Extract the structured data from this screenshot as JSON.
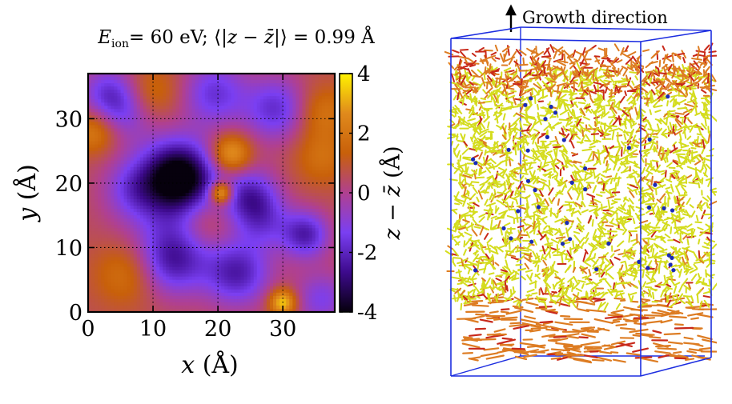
{
  "chart_data": [
    {
      "type": "heatmap",
      "title": "E_ion = 60 eV; ⟨|z − z̄|⟩ = 0.99 Å",
      "title_parts": {
        "var": "E",
        "sub": "ion",
        "eq_value": "= 60 eV; ⟨|",
        "z": "z",
        "minus": " − ",
        "zbar": "z̄",
        "rest": "|⟩ = 0.99 Å"
      },
      "xlabel": "x (Å)",
      "ylabel": "y (Å)",
      "x_label_var": "x",
      "x_label_unit": "(Å)",
      "y_label_var": "y",
      "y_label_unit": "(Å)",
      "xlim": [
        0,
        38
      ],
      "ylim": [
        0,
        37
      ],
      "xticks": [
        0,
        10,
        20,
        30
      ],
      "yticks": [
        0,
        10,
        20,
        30
      ],
      "grid": true,
      "colorbar": {
        "label": "z − z̄ (Å)",
        "label_z": "z",
        "label_minus": " − ",
        "label_zbar": "z̄",
        "label_unit": " (Å)",
        "range": [
          -4,
          4
        ],
        "ticks": [
          {
            "value": 4,
            "label": "4"
          },
          {
            "value": 2,
            "label": "2"
          },
          {
            "value": 0,
            "label": "0"
          },
          {
            "value": -2,
            "label": "-2"
          },
          {
            "value": -4,
            "label": "-4"
          }
        ]
      },
      "baseline_height": 0.6,
      "features": [
        {
          "x": 14,
          "y": 21,
          "height": -3.6,
          "spread": 3.5
        },
        {
          "x": 13,
          "y": 19,
          "height": -2.2,
          "spread": 6
        },
        {
          "x": 20.5,
          "y": 18.5,
          "height": 3.8,
          "spread": 1.2
        },
        {
          "x": 22,
          "y": 24.5,
          "height": 2.8,
          "spread": 2.2
        },
        {
          "x": 29,
          "y": 31.5,
          "height": -2.4,
          "spread": 3.5
        },
        {
          "x": 19.5,
          "y": 34,
          "height": -2.2,
          "spread": 3.5
        },
        {
          "x": 3,
          "y": 34,
          "height": -2,
          "spread": 3
        },
        {
          "x": 5.5,
          "y": 31,
          "height": -1.4,
          "spread": 3
        },
        {
          "x": 25,
          "y": 18,
          "height": -2.4,
          "spread": 3
        },
        {
          "x": 27,
          "y": 14,
          "height": -1.6,
          "spread": 3
        },
        {
          "x": 33.5,
          "y": 12,
          "height": -2.8,
          "spread": 2.6
        },
        {
          "x": 13,
          "y": 8,
          "height": -2.8,
          "spread": 3.8
        },
        {
          "x": 23,
          "y": 6,
          "height": -2.8,
          "spread": 3.6
        },
        {
          "x": 7,
          "y": 19,
          "height": -1.2,
          "spread": 3
        },
        {
          "x": 36,
          "y": 2,
          "height": -1.8,
          "spread": 3
        },
        {
          "x": 30,
          "y": 1.5,
          "height": 3.2,
          "spread": 1.5
        },
        {
          "x": 6,
          "y": 6,
          "height": 1.4,
          "spread": 3.5
        },
        {
          "x": 36,
          "y": 24,
          "height": 1.2,
          "spread": 3
        },
        {
          "x": 10,
          "y": 34,
          "height": 1.2,
          "spread": 3
        },
        {
          "x": 1,
          "y": 28,
          "height": 1.8,
          "spread": 2.5
        },
        {
          "x": 36,
          "y": 31,
          "height": 1.4,
          "spread": 3
        },
        {
          "x": 18,
          "y": 14,
          "height": 1.2,
          "spread": 3
        }
      ]
    },
    {
      "type": "other",
      "subtype": "3d-structure-render",
      "annotation": "Growth direction",
      "layers": [
        "disordered surface",
        "bulk network",
        "substrate"
      ]
    }
  ],
  "colors": {
    "colormap": [
      "#06000d",
      "#3d0a8c",
      "#7a3ff2",
      "#b04090",
      "#c8600a",
      "#e08a1c",
      "#fff200"
    ],
    "panel_background": "#ffffff",
    "frame_blue": "#1d2ee0",
    "arrow": "#000000",
    "atoms_yellow": "#d4dc1e",
    "atoms_orange": "#dd7c22",
    "atoms_red": "#c8281a",
    "atoms_blue": "#1a2ab8"
  },
  "icons": {
    "growth_arrow": "up-arrow-icon"
  }
}
